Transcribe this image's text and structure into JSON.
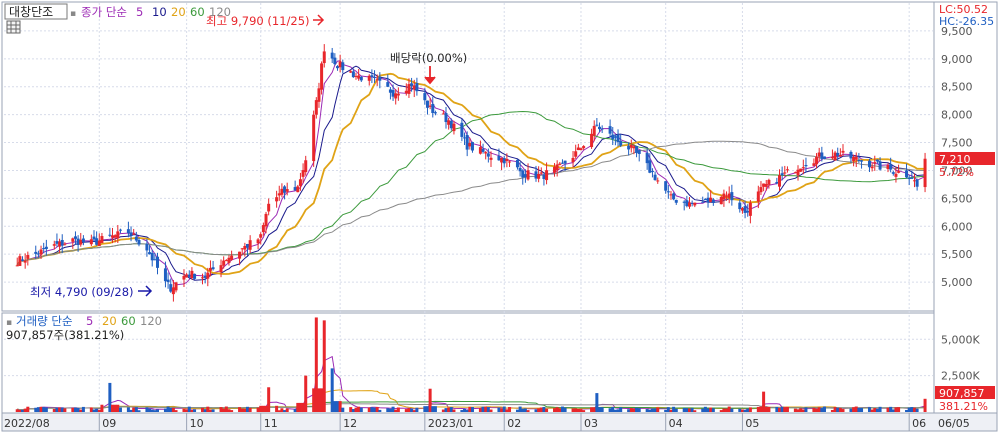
{
  "toolbar": {
    "stock_name": "대창단조",
    "price_legend_title": "종가 단순",
    "ma_periods": [
      "5",
      "10",
      "20",
      "60",
      "120"
    ],
    "volume_legend_title": "거래량 단순",
    "volume_ma_periods": [
      "5",
      "20",
      "60",
      "120"
    ]
  },
  "corner_readouts": {
    "lc": "LC:50.52",
    "hc": "HC:-26.35"
  },
  "colors": {
    "up": "#e8262b",
    "down": "#1f5fc2",
    "ma5": "#9c2bb5",
    "ma10": "#1a1a8c",
    "ma20": "#e0a316",
    "ma60": "#3c9a3c",
    "ma120": "#8a8a8a",
    "grid": "#d7dcea",
    "axis_text": "#555555"
  },
  "chart_data": [
    {
      "type": "candlestick",
      "title": "",
      "y_ticks": [
        "9,500",
        "9,000",
        "8,500",
        "8,000",
        "7,500",
        "7,000",
        "6,500",
        "6,000",
        "5,500",
        "5,000"
      ],
      "ylim": [
        4500,
        10000
      ],
      "x_ticks": [
        "2022/08",
        "09",
        "10",
        "11",
        "12",
        "2023/01",
        "02",
        "03",
        "04",
        "05",
        "06",
        "06/05"
      ],
      "last_price": "7,210",
      "last_change": "5.72%",
      "annotations": {
        "high": "최고 9,790 (11/25)",
        "low": "최저 4,790 (09/28)",
        "dividend": "배당락(0.00%)"
      },
      "series": [
        {
          "name": "5",
          "kind": "ma"
        },
        {
          "name": "10",
          "kind": "ma"
        },
        {
          "name": "20",
          "kind": "ma"
        },
        {
          "name": "60",
          "kind": "ma"
        },
        {
          "name": "120",
          "kind": "ma"
        }
      ],
      "close_path": [
        [
          "2022-08-01",
          5380
        ],
        [
          "2022-08-08",
          5500
        ],
        [
          "2022-08-15",
          5650
        ],
        [
          "2022-08-22",
          5750
        ],
        [
          "2022-08-29",
          5700
        ],
        [
          "2022-09-05",
          5800
        ],
        [
          "2022-09-12",
          5900
        ],
        [
          "2022-09-19",
          5600
        ],
        [
          "2022-09-26",
          4980
        ],
        [
          "2022-09-28",
          4900
        ],
        [
          "2022-10-04",
          5150
        ],
        [
          "2022-10-11",
          5100
        ],
        [
          "2022-10-18",
          5400
        ],
        [
          "2022-10-25",
          5600
        ],
        [
          "2022-11-01",
          5800
        ],
        [
          "2022-11-04",
          6400
        ],
        [
          "2022-11-09",
          6600
        ],
        [
          "2022-11-15",
          6700
        ],
        [
          "2022-11-18",
          7200
        ],
        [
          "2022-11-22",
          8200
        ],
        [
          "2022-11-25",
          9200
        ],
        [
          "2022-11-30",
          8900
        ],
        [
          "2022-12-07",
          8700
        ],
        [
          "2022-12-14",
          8600
        ],
        [
          "2022-12-21",
          8400
        ],
        [
          "2022-12-28",
          8550
        ],
        [
          "2023-01-04",
          8100
        ],
        [
          "2023-01-11",
          7900
        ],
        [
          "2023-01-18",
          7450
        ],
        [
          "2023-01-25",
          7300
        ],
        [
          "2023-02-01",
          7200
        ],
        [
          "2023-02-08",
          6950
        ],
        [
          "2023-02-15",
          6900
        ],
        [
          "2023-02-22",
          7050
        ],
        [
          "2023-03-01",
          7350
        ],
        [
          "2023-03-08",
          7800
        ],
        [
          "2023-03-15",
          7550
        ],
        [
          "2023-03-22",
          7350
        ],
        [
          "2023-03-29",
          6950
        ],
        [
          "2023-04-05",
          6500
        ],
        [
          "2023-04-12",
          6400
        ],
        [
          "2023-04-19",
          6450
        ],
        [
          "2023-04-26",
          6600
        ],
        [
          "2023-05-03",
          6250
        ],
        [
          "2023-05-10",
          6700
        ],
        [
          "2023-05-17",
          6900
        ],
        [
          "2023-05-24",
          7100
        ],
        [
          "2023-05-31",
          7250
        ],
        [
          "2023-06-07",
          7300
        ],
        [
          "2023-06-14",
          7200
        ],
        [
          "2023-06-21",
          7100
        ],
        [
          "2023-06-28",
          7000
        ],
        [
          "2023-07-05",
          6900
        ],
        [
          "2023-07-07",
          6700
        ],
        [
          "2023-07-10",
          7210
        ]
      ]
    },
    {
      "type": "bar",
      "title": "",
      "readout": "907,857주(381.21%)",
      "last_value": "907,857",
      "last_ratio": "381.21%",
      "y_ticks": [
        "5,000K",
        "2,500K"
      ],
      "ylim": [
        0,
        6600000
      ],
      "series": [
        {
          "name": "5",
          "kind": "ma"
        },
        {
          "name": "20",
          "kind": "ma"
        },
        {
          "name": "60",
          "kind": "ma"
        },
        {
          "name": "120",
          "kind": "ma"
        }
      ],
      "spikes": [
        [
          "2022-09-05",
          2000000
        ],
        [
          "2022-11-04",
          1700000
        ],
        [
          "2022-11-18",
          2500000
        ],
        [
          "2022-11-22",
          6500000
        ],
        [
          "2022-11-25",
          6300000
        ],
        [
          "2022-11-28",
          3000000
        ],
        [
          "2023-01-04",
          1600000
        ],
        [
          "2023-03-08",
          1300000
        ],
        [
          "2023-05-10",
          1400000
        ],
        [
          "2023-07-10",
          907857
        ]
      ]
    }
  ]
}
